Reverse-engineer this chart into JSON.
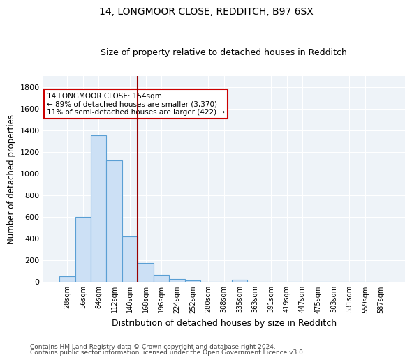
{
  "title1": "14, LONGMOOR CLOSE, REDDITCH, B97 6SX",
  "title2": "Size of property relative to detached houses in Redditch",
  "xlabel": "Distribution of detached houses by size in Redditch",
  "ylabel": "Number of detached properties",
  "footnote1": "Contains HM Land Registry data © Crown copyright and database right 2024.",
  "footnote2": "Contains public sector information licensed under the Open Government Licence v3.0.",
  "bins": [
    "28sqm",
    "56sqm",
    "84sqm",
    "112sqm",
    "140sqm",
    "168sqm",
    "196sqm",
    "224sqm",
    "252sqm",
    "280sqm",
    "308sqm",
    "335sqm",
    "363sqm",
    "391sqm",
    "419sqm",
    "447sqm",
    "475sqm",
    "503sqm",
    "531sqm",
    "559sqm",
    "587sqm"
  ],
  "values": [
    50,
    600,
    1350,
    1120,
    420,
    175,
    60,
    25,
    10,
    0,
    0,
    15,
    0,
    0,
    0,
    0,
    0,
    0,
    0,
    0,
    0
  ],
  "bar_color": "#cce0f5",
  "bar_edge_color": "#5a9fd4",
  "vline_color": "#990000",
  "annotation_text": "14 LONGMOOR CLOSE: 154sqm\n← 89% of detached houses are smaller (3,370)\n11% of semi-detached houses are larger (422) →",
  "annotation_box_color": "white",
  "annotation_box_edge_color": "#cc0000",
  "ylim": [
    0,
    1900
  ],
  "yticks": [
    0,
    200,
    400,
    600,
    800,
    1000,
    1200,
    1400,
    1600,
    1800
  ],
  "vline_bin_index": 4.5,
  "background_color": "#eef3f8"
}
